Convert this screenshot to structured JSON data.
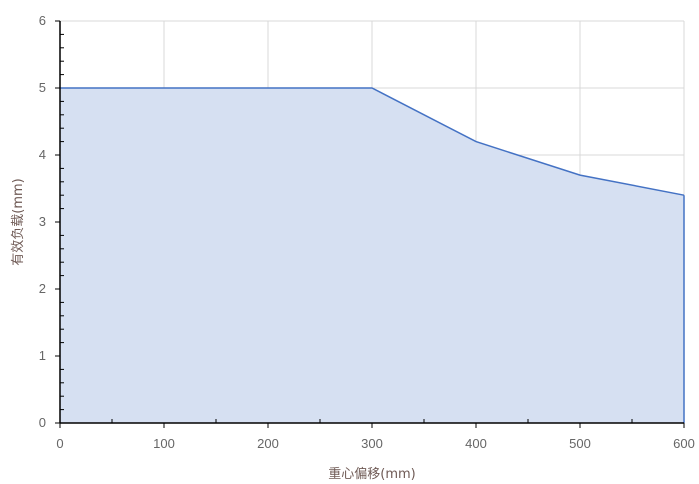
{
  "chart_data": {
    "type": "area",
    "title": "",
    "xlabel": "重心偏移(mm)",
    "ylabel": "有效负载(mm)",
    "x": [
      0,
      100,
      200,
      300,
      400,
      500,
      600
    ],
    "series": [
      {
        "values": [
          5.0,
          5.0,
          5.0,
          5.0,
          4.2,
          3.7,
          3.4
        ]
      }
    ],
    "xlim": [
      0,
      600
    ],
    "ylim": [
      0,
      6
    ],
    "xticks": [
      "0",
      "100",
      "200",
      "300",
      "400",
      "500",
      "600"
    ],
    "yticks": [
      "0",
      "1",
      "2",
      "3",
      "4",
      "5",
      "6"
    ],
    "grid": true,
    "colors": {
      "line": "#4472c4",
      "fill": "#d6e0f2",
      "grid": "#d9d9d9",
      "axis": "#000000"
    }
  }
}
